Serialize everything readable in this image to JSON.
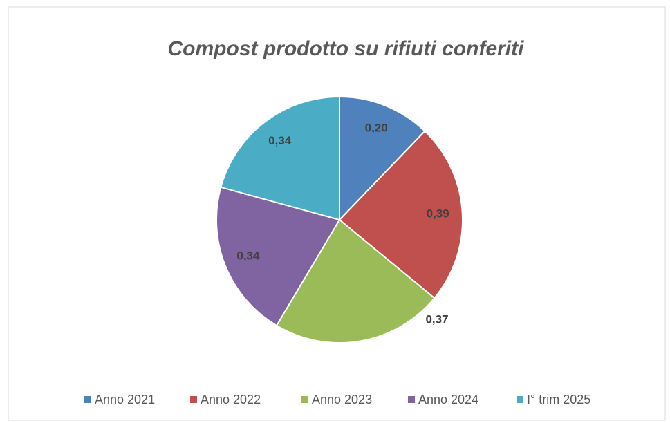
{
  "chart_data": {
    "type": "pie",
    "title": "Compost prodotto su rifiuti conferiti",
    "categories": [
      "Anno 2021",
      "Anno 2022",
      "Anno 2023",
      "Anno 2024",
      "I° trim 2025"
    ],
    "values": [
      0.2,
      0.39,
      0.37,
      0.34,
      0.34
    ],
    "value_labels": [
      "0,20",
      "0,39",
      "0,37",
      "0,34",
      "0,34"
    ],
    "colors": [
      "#4f81bd",
      "#c0504d",
      "#9bbb59",
      "#8064a2",
      "#4bacc6"
    ],
    "legend": "bottom"
  }
}
